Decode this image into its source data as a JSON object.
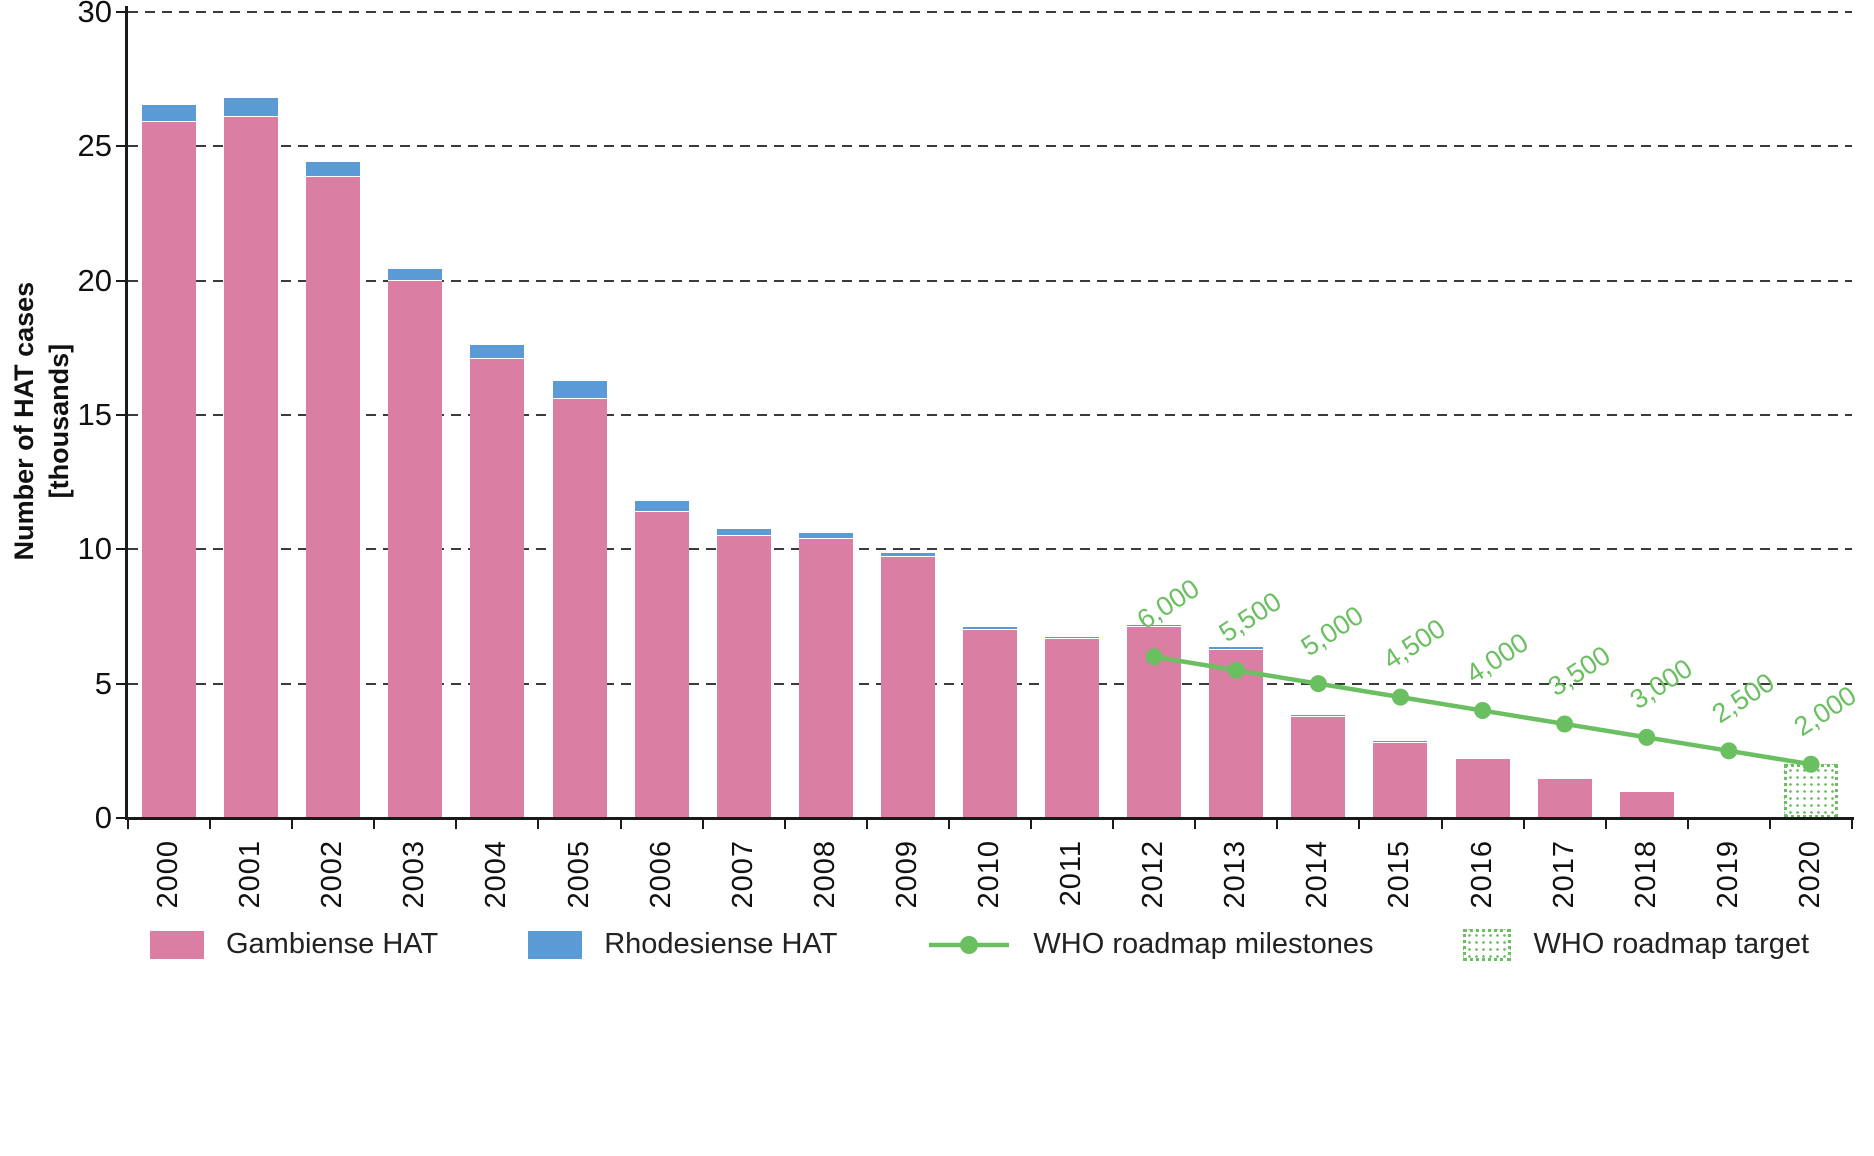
{
  "figure": {
    "y_axis_title_line1": "Number of HAT cases",
    "y_axis_title_line2": "[thousands]"
  },
  "colors": {
    "gambiense": "#da7ea4",
    "rhodesiense": "#5b9bd5",
    "roadmap_green": "#6abf60",
    "axis": "#1a1a1a",
    "grid": "#3b3b3b"
  },
  "legend": [
    {
      "label": "Gambiense HAT",
      "swatch": "pink-fill"
    },
    {
      "label": "Rhodesiense HAT",
      "swatch": "blue-fill"
    },
    {
      "label": "WHO roadmap milestones",
      "swatch": "green-line-marker"
    },
    {
      "label": "WHO roadmap target",
      "swatch": "green-dotted-box"
    }
  ],
  "chart_data": {
    "type": "bar",
    "stacked": true,
    "unit": "thousands of cases",
    "title": "",
    "xlabel": "",
    "ylabel": "Number of HAT cases [thousands]",
    "ylim": [
      0,
      30
    ],
    "yticks": [
      0,
      5,
      10,
      15,
      20,
      25,
      30
    ],
    "grid": "dashed horizontal",
    "categories": [
      "2000",
      "2001",
      "2002",
      "2003",
      "2004",
      "2005",
      "2006",
      "2007",
      "2008",
      "2009",
      "2010",
      "2011",
      "2012",
      "2013",
      "2014",
      "2015",
      "2016",
      "2017",
      "2018",
      "2019",
      "2020"
    ],
    "series": [
      {
        "name": "Gambiense HAT",
        "color": "#da7ea4",
        "values": [
          25.9,
          26.1,
          23.85,
          20.0,
          17.1,
          15.6,
          11.4,
          10.5,
          10.4,
          9.7,
          7.0,
          6.65,
          7.1,
          6.25,
          3.75,
          2.8,
          2.2,
          1.45,
          0.98,
          null,
          null
        ]
      },
      {
        "name": "Rhodesiense HAT",
        "color": "#5b9bd5",
        "values": [
          0.65,
          0.7,
          0.55,
          0.45,
          0.5,
          0.65,
          0.4,
          0.25,
          0.2,
          0.15,
          0.1,
          0.08,
          0.1,
          0.1,
          0.1,
          0.06,
          0.05,
          0,
          0,
          null,
          null
        ]
      }
    ],
    "milestones": {
      "name": "WHO roadmap milestones",
      "color": "#6abf60",
      "points": [
        {
          "year": "2012",
          "value": 6.0,
          "label": "6,000"
        },
        {
          "year": "2013",
          "value": 5.5,
          "label": "5,500"
        },
        {
          "year": "2014",
          "value": 5.0,
          "label": "5,000"
        },
        {
          "year": "2015",
          "value": 4.5,
          "label": "4,500"
        },
        {
          "year": "2016",
          "value": 4.0,
          "label": "4,000"
        },
        {
          "year": "2017",
          "value": 3.5,
          "label": "3,500"
        },
        {
          "year": "2018",
          "value": 3.0,
          "label": "3,000"
        },
        {
          "year": "2019",
          "value": 2.5,
          "label": "2,500"
        },
        {
          "year": "2020",
          "value": 2.0,
          "label": "2,000"
        }
      ]
    },
    "target": {
      "name": "WHO roadmap target",
      "year": "2020",
      "value": 2.0,
      "color": "#6abf60"
    }
  }
}
